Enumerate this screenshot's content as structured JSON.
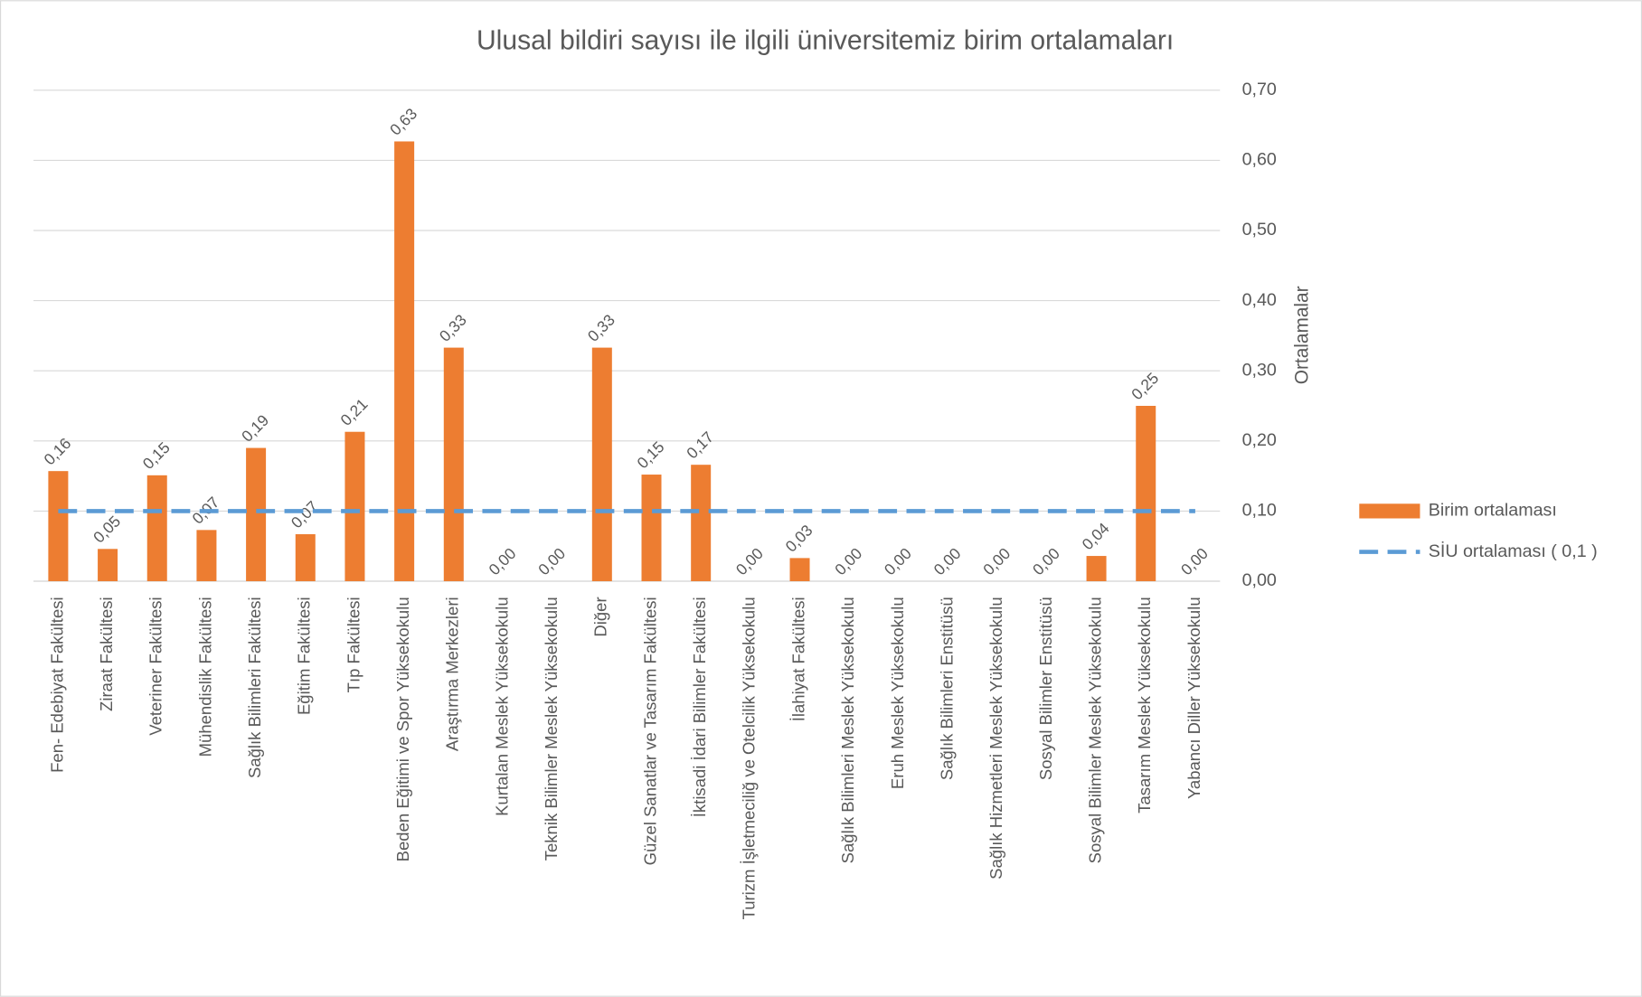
{
  "chart_data": {
    "type": "bar",
    "title": "Ulusal bildiri sayısı ile ilgili üniversitemiz birim ortalamaları",
    "y_axis_label": "Ortalamalar",
    "categories": [
      "Fen- Edebiyat Fakültesi",
      "Ziraat Fakültesi",
      "Veteriner Fakültesi",
      "Mühendislik Fakültesi",
      "Sağlık Bilimleri Fakültesi",
      "Eğitim Fakültesi",
      "Tıp Fakültesi",
      "Beden Eğitimi ve Spor Yüksekokulu",
      "Araştırma Merkezleri",
      "Kurtalan Meslek Yüksekokulu",
      "Teknik Bilimler Meslek Yüksekokulu",
      "Diğer",
      "Güzel Sanatlar ve Tasarım Fakültesi",
      "İktisadi İdari Bilimler Fakültesi",
      "Turizm İşletmeciliğ ve Otelcilik Yüksekokulu",
      "İlahiyat Fakültesi",
      "Sağlık Bilimleri Meslek Yüksekokulu",
      "Eruh Meslek Yüksekokulu",
      "Sağlık Bilimleri Enstitüsü",
      "Sağlık Hizmetleri Meslek Yüksekokulu",
      "Sosyal Bilimler Enstitüsü",
      "Sosyal Bilimler Meslek Yüksekokulu",
      "Tasarım Meslek Yüksekokulu",
      "Yabancı Diller Yüksekokulu"
    ],
    "series": [
      {
        "name": "Birim ortalaması",
        "type": "bar",
        "color": "#ed7d31",
        "values": [
          0.157,
          0.046,
          0.151,
          0.073,
          0.19,
          0.067,
          0.213,
          0.627,
          0.333,
          0,
          0,
          0.333,
          0.152,
          0.166,
          0,
          0.033,
          0,
          0,
          0,
          0,
          0,
          0.036,
          0.25,
          0
        ],
        "value_labels": [
          "0,16",
          "0,05",
          "0,15",
          "0,07",
          "0,19",
          "0,07",
          "0,21",
          "0,63",
          "0,33",
          "0,00",
          "0,00",
          "0,33",
          "0,15",
          "0,17",
          "0,00",
          "0,03",
          "0,00",
          "0,00",
          "0,00",
          "0,00",
          "0,00",
          "0,04",
          "0,25",
          "0,00"
        ]
      },
      {
        "name": "SİU ortalaması  ( 0,1 )",
        "type": "line",
        "dashed": true,
        "color": "#5b9bd5",
        "values": [
          0.1,
          0.1,
          0.1,
          0.1,
          0.1,
          0.1,
          0.1,
          0.1,
          0.1,
          0.1,
          0.1,
          0.1,
          0.1,
          0.1,
          0.1,
          0.1,
          0.1,
          0.1,
          0.1,
          0.1,
          0.1,
          0.1,
          0.1,
          0.1
        ]
      }
    ],
    "ylim": [
      0,
      0.7
    ],
    "yticks": [
      {
        "value": 0,
        "label": "0,00"
      },
      {
        "value": 0.1,
        "label": "0,10"
      },
      {
        "value": 0.2,
        "label": "0,20"
      },
      {
        "value": 0.3,
        "label": "0,30"
      },
      {
        "value": 0.4,
        "label": "0,40"
      },
      {
        "value": 0.5,
        "label": "0,50"
      },
      {
        "value": 0.6,
        "label": "0,60"
      },
      {
        "value": 0.7,
        "label": "0,70"
      }
    ],
    "y_axis_side": "right",
    "grid": true,
    "legend": "right"
  }
}
